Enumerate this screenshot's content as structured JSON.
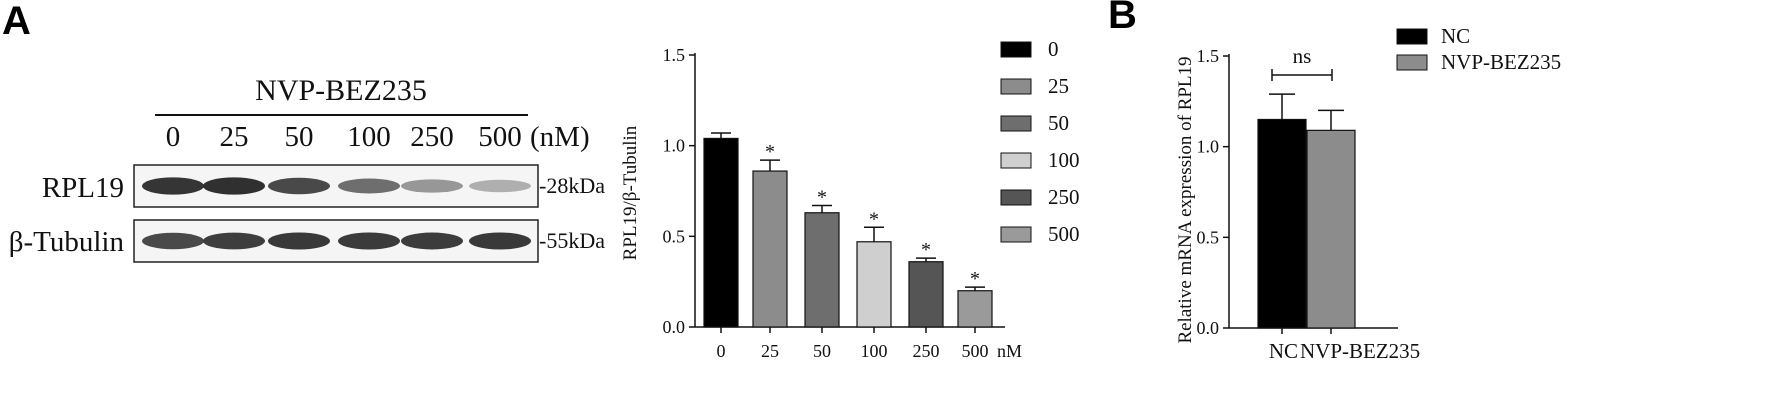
{
  "panel_a": {
    "letter": "A",
    "blot": {
      "treatment": "NVP-BEZ235",
      "doses": [
        "0",
        "25",
        "50",
        "100",
        "250",
        "500"
      ],
      "unit": "(nM)",
      "rows": [
        {
          "label": "RPL19",
          "marker": "-28kDa",
          "band_intensity": [
            0.9,
            0.92,
            0.8,
            0.62,
            0.42,
            0.3
          ]
        },
        {
          "label": "β-Tubulin",
          "marker": "-55kDa",
          "band_intensity": [
            0.8,
            0.85,
            0.88,
            0.87,
            0.86,
            0.88
          ]
        }
      ]
    }
  },
  "panel_b": {
    "letter": "B"
  },
  "chart_data": [
    {
      "type": "bar",
      "title": "",
      "xlabel": "",
      "ylabel": "RPL19/β-Tubulin",
      "x_unit_label": "nM",
      "categories": [
        "0",
        "25",
        "50",
        "100",
        "250",
        "500"
      ],
      "values": [
        1.04,
        0.86,
        0.63,
        0.47,
        0.36,
        0.2
      ],
      "errors": [
        0.03,
        0.06,
        0.04,
        0.08,
        0.02,
        0.02
      ],
      "significance": [
        "",
        "*",
        "*",
        "*",
        "*",
        "*"
      ],
      "colors": [
        "#000000",
        "#8c8c8c",
        "#6e6e6e",
        "#cfcfcf",
        "#555555",
        "#9a9a9a"
      ],
      "legend": [
        "0",
        "25",
        "50",
        "100",
        "250",
        "500"
      ],
      "legend_position": "right",
      "ylim": [
        0,
        1.5
      ],
      "yticks": [
        "0.0",
        "0.5",
        "1.0",
        "1.5"
      ],
      "grid": false
    },
    {
      "type": "bar",
      "title": "",
      "xlabel": "",
      "ylabel": "Relative mRNA expression of RPL19",
      "categories": [
        "NC",
        "NVP-BEZ235"
      ],
      "values": [
        1.15,
        1.09
      ],
      "errors": [
        0.14,
        0.11
      ],
      "colors": [
        "#000000",
        "#8c8c8c"
      ],
      "legend": [
        "NC",
        "NVP-BEZ235"
      ],
      "legend_position": "top-right",
      "significance_label": "ns",
      "ylim": [
        0,
        1.5
      ],
      "yticks": [
        "0.0",
        "0.5",
        "1.0",
        "1.5"
      ],
      "grid": false
    }
  ]
}
